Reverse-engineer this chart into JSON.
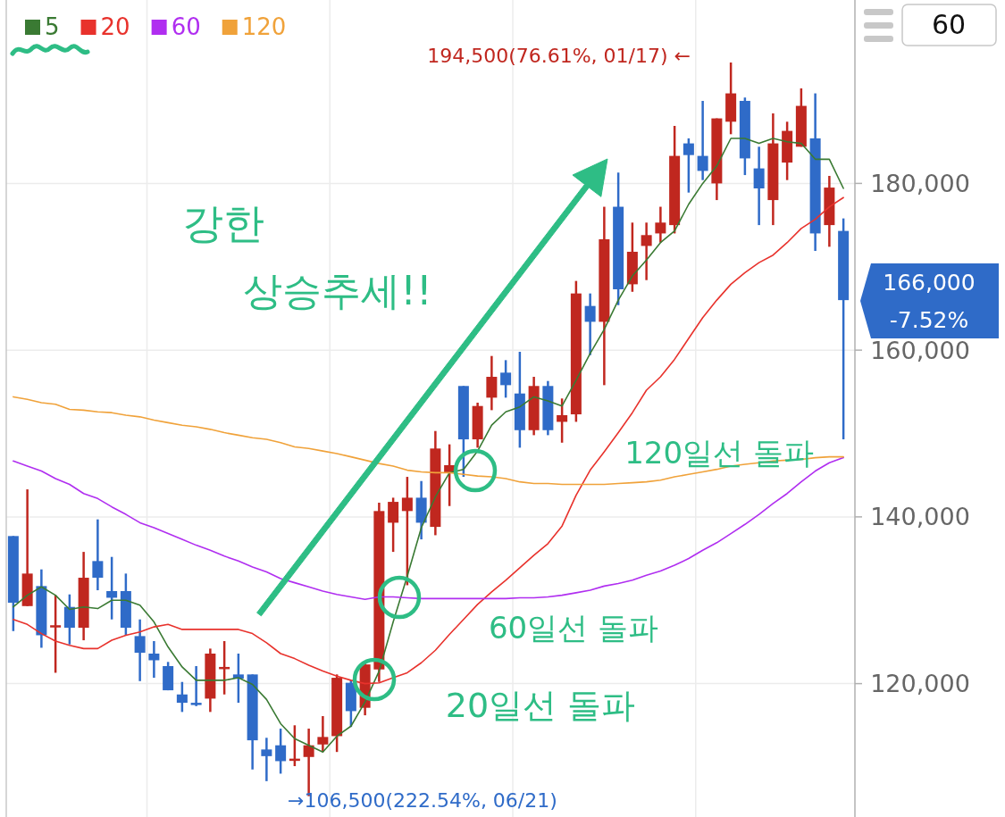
{
  "chart_data": {
    "type": "candlestick",
    "categories": [
      null,
      null,
      null,
      null,
      null,
      null,
      null,
      null,
      null,
      null,
      null,
      null,
      null,
      null,
      null,
      null,
      null,
      null,
      null,
      null,
      null,
      null,
      null,
      null,
      null,
      null,
      null,
      null,
      null,
      null,
      null,
      null,
      null,
      null,
      null,
      null,
      null,
      null,
      null,
      null,
      null,
      null,
      null,
      null,
      null,
      null,
      null,
      null,
      null,
      null,
      null,
      null,
      null,
      null,
      null,
      null,
      null,
      null,
      null,
      null
    ],
    "ohlc": [
      [
        137700,
        137700,
        126300,
        129700
      ],
      [
        129300,
        143300,
        129300,
        133200
      ],
      [
        131700,
        133700,
        124300,
        125800
      ],
      [
        126800,
        130600,
        121300,
        127000
      ],
      [
        129200,
        130700,
        124700,
        126700
      ],
      [
        126700,
        135800,
        125200,
        132700
      ],
      [
        134700,
        139700,
        131200,
        132700
      ],
      [
        131100,
        135200,
        127700,
        130300
      ],
      [
        131100,
        133200,
        125800,
        126700
      ],
      [
        125700,
        127700,
        120300,
        123700
      ],
      [
        123600,
        125100,
        120700,
        122800
      ],
      [
        122100,
        122600,
        119200,
        119200
      ],
      [
        118700,
        120200,
        116600,
        117700
      ],
      [
        117700,
        122100,
        117300,
        117500
      ],
      [
        118200,
        124200,
        116600,
        123600
      ],
      [
        121900,
        125100,
        118700,
        122000
      ],
      [
        121100,
        123600,
        117700,
        120600
      ],
      [
        121100,
        121100,
        109700,
        113200
      ],
      [
        112100,
        113500,
        108300,
        111300
      ],
      [
        112600,
        114600,
        109200,
        110700
      ],
      [
        110900,
        115000,
        110100,
        111000
      ],
      [
        111200,
        114600,
        106500,
        112600
      ],
      [
        112700,
        116100,
        111800,
        113600
      ],
      [
        113700,
        121100,
        111800,
        120700
      ],
      [
        120100,
        120400,
        114800,
        116700
      ],
      [
        117100,
        122600,
        116200,
        122300
      ],
      [
        121700,
        141700,
        120200,
        140700
      ],
      [
        139300,
        142300,
        135800,
        141800
      ],
      [
        140700,
        144800,
        131800,
        142300
      ],
      [
        142300,
        144300,
        137300,
        139300
      ],
      [
        138800,
        150300,
        137800,
        148200
      ],
      [
        145300,
        148700,
        141300,
        146200
      ],
      [
        155700,
        155700,
        144800,
        149300
      ],
      [
        149300,
        153700,
        148300,
        153300
      ],
      [
        154300,
        159300,
        152800,
        156800
      ],
      [
        157300,
        158800,
        154300,
        155800
      ],
      [
        154800,
        159800,
        148300,
        150400
      ],
      [
        150400,
        156800,
        149800,
        155700
      ],
      [
        155700,
        156300,
        149800,
        150400
      ],
      [
        151400,
        154200,
        148900,
        152200
      ],
      [
        152300,
        168300,
        151400,
        166800
      ],
      [
        165300,
        166800,
        159400,
        163400
      ],
      [
        163400,
        177200,
        155800,
        173300
      ],
      [
        177200,
        181300,
        165400,
        167300
      ],
      [
        167900,
        175300,
        167000,
        171800
      ],
      [
        172500,
        175300,
        168400,
        173800
      ],
      [
        174000,
        177200,
        172900,
        175300
      ],
      [
        175000,
        186900,
        174000,
        183300
      ],
      [
        184800,
        185400,
        178900,
        183400
      ],
      [
        183300,
        189900,
        180400,
        181500
      ],
      [
        180000,
        187800,
        178000,
        187800
      ],
      [
        187400,
        194500,
        185900,
        190800
      ],
      [
        189900,
        190300,
        181000,
        183000
      ],
      [
        181800,
        184400,
        175000,
        179400
      ],
      [
        178000,
        188400,
        175000,
        184800
      ],
      [
        182500,
        187400,
        180400,
        186300
      ],
      [
        184400,
        191400,
        184400,
        189300
      ],
      [
        185400,
        190800,
        171900,
        174000
      ],
      [
        175000,
        180900,
        172400,
        179500
      ],
      [
        174300,
        175800,
        149300,
        166000
      ]
    ],
    "colors": [
      "#2f6bc8",
      "#c0271f",
      "#2f6bc8",
      "#c0271f",
      "#2f6bc8",
      "#c0271f",
      "#2f6bc8",
      "#2f6bc8",
      "#2f6bc8",
      "#2f6bc8",
      "#2f6bc8",
      "#2f6bc8",
      "#2f6bc8",
      "#2f6bc8",
      "#c0271f",
      "#c0271f",
      "#2f6bc8",
      "#2f6bc8",
      "#2f6bc8",
      "#2f6bc8",
      "#c0271f",
      "#c0271f",
      "#c0271f",
      "#c0271f",
      "#2f6bc8",
      "#c0271f",
      "#c0271f",
      "#c0271f",
      "#c0271f",
      "#2f6bc8",
      "#c0271f",
      "#c0271f",
      "#2f6bc8",
      "#c0271f",
      "#c0271f",
      "#2f6bc8",
      "#2f6bc8",
      "#c0271f",
      "#2f6bc8",
      "#c0271f",
      "#c0271f",
      "#2f6bc8",
      "#c0271f",
      "#2f6bc8",
      "#c0271f",
      "#c0271f",
      "#c0271f",
      "#c0271f",
      "#2f6bc8",
      "#2f6bc8",
      "#c0271f",
      "#c0271f",
      "#2f6bc8",
      "#2f6bc8",
      "#c0271f",
      "#c0271f",
      "#c0271f",
      "#2f6bc8",
      "#c0271f",
      "#2f6bc8"
    ],
    "series": [
      {
        "type": "line",
        "name": "5",
        "color": "#3a7a33",
        "values": [
          129200,
          130600,
          131600,
          130600,
          128900,
          129200,
          129000,
          130000,
          130000,
          129400,
          127400,
          124400,
          122000,
          120400,
          120400,
          120400,
          120700,
          119900,
          118100,
          115200,
          113400,
          112600,
          111800,
          113700,
          114900,
          117800,
          121500,
          127400,
          132900,
          138700,
          142400,
          145300,
          145700,
          147900,
          151000,
          152600,
          153200,
          154400,
          153900,
          153300,
          156400,
          159600,
          162500,
          166000,
          168900,
          170800,
          172900,
          174300,
          177500,
          180000,
          182100,
          185400,
          185400,
          184800,
          185400,
          185000,
          184800,
          182900,
          182900,
          179400
        ]
      },
      {
        "type": "line",
        "name": "20",
        "color": "#e8322c",
        "values": [
          127700,
          127100,
          126000,
          125100,
          124600,
          124200,
          124200,
          125200,
          125800,
          126200,
          126800,
          127100,
          126500,
          126500,
          126500,
          126500,
          126500,
          126000,
          124900,
          123600,
          123000,
          122200,
          121500,
          120900,
          120400,
          120000,
          120100,
          120700,
          121300,
          122500,
          124000,
          125900,
          127700,
          129500,
          131000,
          132400,
          133900,
          135400,
          136800,
          138900,
          142600,
          145600,
          147800,
          150100,
          152500,
          155200,
          156800,
          158900,
          161400,
          163900,
          166000,
          167900,
          169300,
          170500,
          171400,
          172900,
          174600,
          175700,
          177200,
          178300
        ]
      },
      {
        "type": "line",
        "name": "60",
        "color": "#b02ef0",
        "values": [
          146700,
          146100,
          145500,
          144600,
          143900,
          142800,
          142200,
          141200,
          140300,
          139300,
          138700,
          138000,
          137300,
          136600,
          136000,
          135300,
          134700,
          134000,
          133400,
          132600,
          132100,
          131600,
          131100,
          130700,
          130400,
          130100,
          130400,
          130400,
          130300,
          130200,
          130200,
          130200,
          130200,
          130200,
          130200,
          130200,
          130300,
          130300,
          130400,
          130600,
          130900,
          131200,
          131700,
          132000,
          132400,
          133000,
          133500,
          134200,
          135000,
          136000,
          136900,
          138000,
          139100,
          140300,
          141600,
          142800,
          144200,
          145500,
          146500,
          147100
        ]
      },
      {
        "type": "line",
        "name": "120",
        "color": "#f0a23a",
        "values": [
          154400,
          154100,
          153700,
          153500,
          152900,
          152800,
          152600,
          152500,
          152200,
          152000,
          151600,
          151300,
          151000,
          150800,
          150500,
          150100,
          149800,
          149500,
          149300,
          148900,
          148400,
          148200,
          147900,
          147600,
          147200,
          146800,
          146400,
          146100,
          145600,
          145400,
          145300,
          145300,
          145100,
          144900,
          144800,
          144600,
          144200,
          144000,
          144000,
          143900,
          143900,
          143900,
          143900,
          144000,
          144100,
          144200,
          144400,
          144800,
          145100,
          145400,
          145700,
          146100,
          146300,
          146500,
          146700,
          146800,
          146900,
          147100,
          147200,
          147200
        ]
      }
    ],
    "ylim": [
      104000,
      202000
    ],
    "yticks": [
      {
        "value": 120000,
        "label": "120,000"
      },
      {
        "value": 140000,
        "label": "140,000"
      },
      {
        "value": 160000,
        "label": "160,000"
      },
      {
        "value": 180000,
        "label": "180,000"
      }
    ],
    "grid": true,
    "legend": "top left",
    "annotations": [
      "194,500(76.61%, 01/17) ←",
      "→106,500(222.54%, 06/21)",
      "166,000",
      "-7.52%",
      "강한",
      "상승추세!!",
      "120일선 돌파",
      "60일선 돌파",
      "20일선 돌파",
      "60"
    ]
  }
}
